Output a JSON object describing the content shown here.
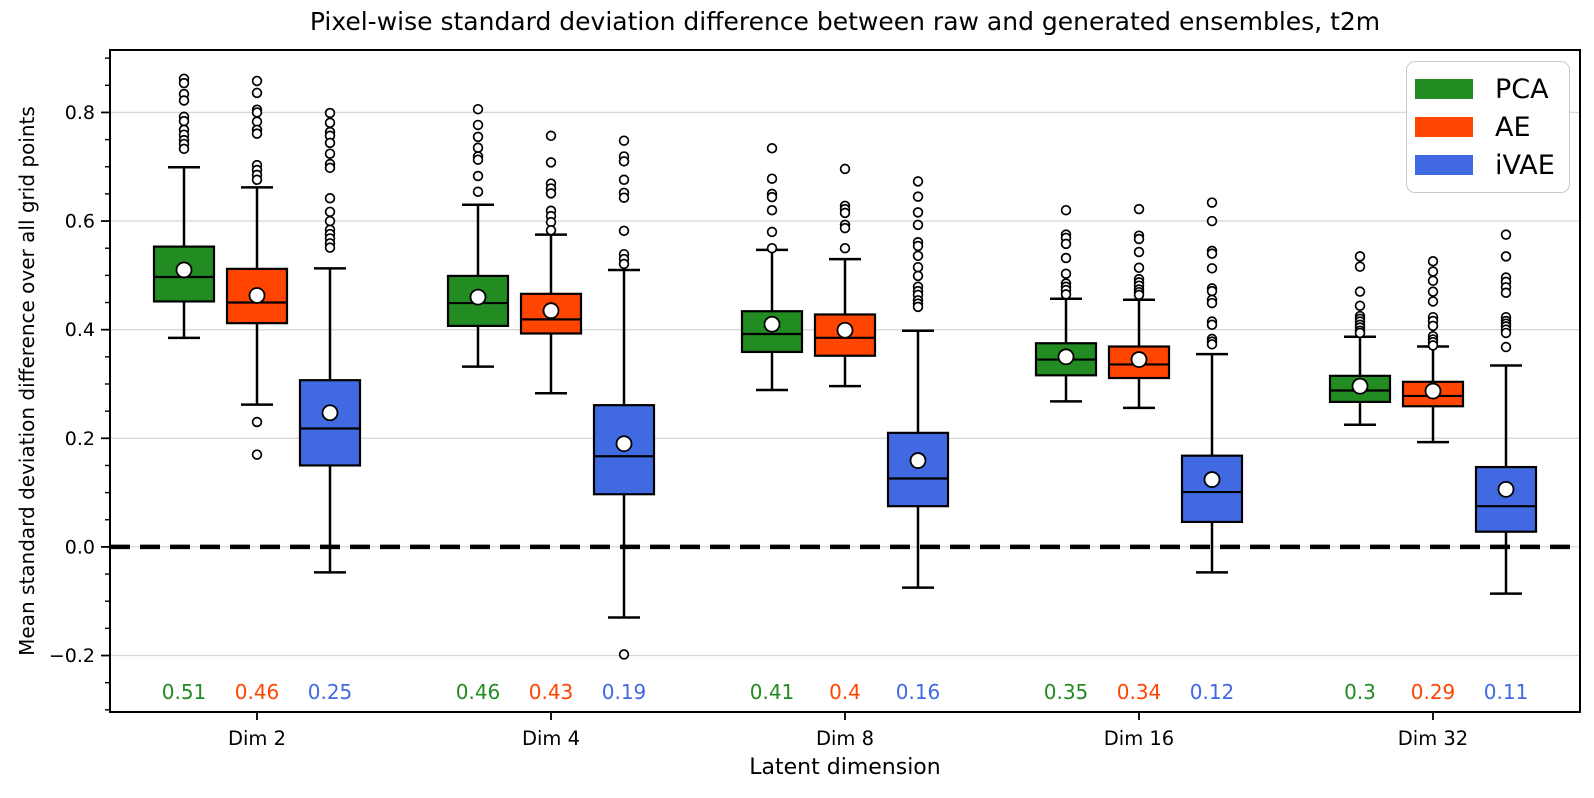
{
  "chart_data": {
    "type": "boxplot",
    "title": "Pixel-wise standard deviation difference between raw and generated ensembles, t2m",
    "xlabel": "Latent dimension",
    "ylabel": "Mean standard deviation difference over all grid points",
    "categories": [
      "Dim 2",
      "Dim 4",
      "Dim 8",
      "Dim 16",
      "Dim 32"
    ],
    "ylim": [
      -0.304,
      0.915
    ],
    "yticks_major": [
      0.8,
      0.6,
      0.4,
      0.2,
      0.0,
      -0.2
    ],
    "ytick_labels": [
      "0.8",
      "0.6",
      "0.4",
      "0.2",
      "0.0",
      "−0.2"
    ],
    "minor_tick_step": 0.05,
    "grid": "horizontal-major-light-gray",
    "zero_line": {
      "value": 0.0,
      "style": "dashed",
      "color": "#000000"
    },
    "colors": {
      "grid": "#d9d9d9",
      "spine": "#000000",
      "marker_fill": "#ffffff",
      "legend_border": "#c9c9c9"
    },
    "legend": {
      "position": "upper right",
      "entries": [
        {
          "label": "PCA",
          "color": "#228B22"
        },
        {
          "label": "AE",
          "color": "#FF4500"
        },
        {
          "label": "iVAE",
          "color": "#4169E1"
        }
      ]
    },
    "series": [
      {
        "name": "PCA",
        "color": "#228B22",
        "mean_labels": [
          "0.51",
          "0.46",
          "0.41",
          "0.35",
          "0.3"
        ],
        "boxes": [
          {
            "whislo": 0.385,
            "q1": 0.452,
            "med": 0.497,
            "q3": 0.553,
            "whishi": 0.699,
            "mean": 0.51,
            "fliers": [
              0.862,
              0.854,
              0.834,
              0.822,
              0.792,
              0.784,
              0.768,
              0.759,
              0.749,
              0.742,
              0.733
            ]
          },
          {
            "whislo": 0.332,
            "q1": 0.407,
            "med": 0.449,
            "q3": 0.499,
            "whishi": 0.63,
            "mean": 0.46,
            "fliers": [
              0.806,
              0.777,
              0.755,
              0.735,
              0.719,
              0.713,
              0.683,
              0.654
            ]
          },
          {
            "whislo": 0.289,
            "q1": 0.359,
            "med": 0.392,
            "q3": 0.434,
            "whishi": 0.547,
            "mean": 0.41,
            "fliers": [
              0.734,
              0.678,
              0.65,
              0.644,
              0.62,
              0.58,
              0.55
            ]
          },
          {
            "whislo": 0.268,
            "q1": 0.316,
            "med": 0.345,
            "q3": 0.375,
            "whishi": 0.457,
            "mean": 0.35,
            "fliers": [
              0.62,
              0.575,
              0.569,
              0.558,
              0.532,
              0.503,
              0.485,
              0.479,
              0.473,
              0.465
            ]
          },
          {
            "whislo": 0.225,
            "q1": 0.267,
            "med": 0.288,
            "q3": 0.315,
            "whishi": 0.387,
            "mean": 0.296,
            "fliers": [
              0.535,
              0.516,
              0.47,
              0.444,
              0.425,
              0.42,
              0.415,
              0.409,
              0.404,
              0.398,
              0.394
            ]
          }
        ]
      },
      {
        "name": "AE",
        "color": "#FF4500",
        "mean_labels": [
          "0.46",
          "0.43",
          "0.4",
          "0.34",
          "0.29"
        ],
        "boxes": [
          {
            "whislo": 0.262,
            "q1": 0.412,
            "med": 0.45,
            "q3": 0.512,
            "whishi": 0.662,
            "mean": 0.463,
            "fliers": [
              0.858,
              0.836,
              0.805,
              0.8,
              0.783,
              0.768,
              0.761,
              0.703,
              0.694,
              0.685,
              0.676,
              0.23,
              0.17
            ]
          },
          {
            "whislo": 0.283,
            "q1": 0.393,
            "med": 0.419,
            "q3": 0.466,
            "whishi": 0.575,
            "mean": 0.435,
            "fliers": [
              0.757,
              0.708,
              0.669,
              0.66,
              0.651,
              0.619,
              0.609,
              0.598,
              0.583
            ]
          },
          {
            "whislo": 0.296,
            "q1": 0.352,
            "med": 0.385,
            "q3": 0.428,
            "whishi": 0.53,
            "mean": 0.399,
            "fliers": [
              0.696,
              0.628,
              0.622,
              0.615,
              0.593,
              0.587,
              0.55
            ]
          },
          {
            "whislo": 0.256,
            "q1": 0.311,
            "med": 0.336,
            "q3": 0.369,
            "whishi": 0.455,
            "mean": 0.345,
            "fliers": [
              0.622,
              0.573,
              0.567,
              0.543,
              0.514,
              0.493,
              0.487,
              0.481,
              0.474,
              0.469,
              0.464
            ]
          },
          {
            "whislo": 0.193,
            "q1": 0.259,
            "med": 0.278,
            "q3": 0.304,
            "whishi": 0.369,
            "mean": 0.287,
            "fliers": [
              0.526,
              0.507,
              0.49,
              0.47,
              0.452,
              0.423,
              0.416,
              0.407,
              0.388,
              0.382,
              0.377,
              0.371
            ]
          }
        ]
      },
      {
        "name": "iVAE",
        "color": "#4169E1",
        "mean_labels": [
          "0.25",
          "0.19",
          "0.16",
          "0.12",
          "0.11"
        ],
        "boxes": [
          {
            "whislo": -0.047,
            "q1": 0.15,
            "med": 0.218,
            "q3": 0.307,
            "whishi": 0.513,
            "mean": 0.247,
            "fliers": [
              0.799,
              0.781,
              0.764,
              0.757,
              0.744,
              0.724,
              0.705,
              0.698,
              0.642,
              0.617,
              0.6,
              0.584,
              0.576,
              0.568,
              0.559,
              0.551
            ]
          },
          {
            "whislo": -0.13,
            "q1": 0.097,
            "med": 0.167,
            "q3": 0.261,
            "whishi": 0.51,
            "mean": 0.19,
            "fliers": [
              0.748,
              0.719,
              0.71,
              0.676,
              0.652,
              0.643,
              0.582,
              0.539,
              0.53,
              0.521,
              -0.198
            ]
          },
          {
            "whislo": -0.075,
            "q1": 0.075,
            "med": 0.126,
            "q3": 0.21,
            "whishi": 0.398,
            "mean": 0.159,
            "fliers": [
              0.673,
              0.645,
              0.616,
              0.593,
              0.561,
              0.554,
              0.536,
              0.515,
              0.499,
              0.479,
              0.471,
              0.464,
              0.454,
              0.448,
              0.442
            ]
          },
          {
            "whislo": -0.047,
            "q1": 0.046,
            "med": 0.101,
            "q3": 0.168,
            "whishi": 0.355,
            "mean": 0.124,
            "fliers": [
              0.634,
              0.6,
              0.545,
              0.54,
              0.513,
              0.476,
              0.471,
              0.455,
              0.449,
              0.415,
              0.409,
              0.383,
              0.378,
              0.373
            ]
          },
          {
            "whislo": -0.086,
            "q1": 0.028,
            "med": 0.075,
            "q3": 0.147,
            "whishi": 0.334,
            "mean": 0.106,
            "fliers": [
              0.575,
              0.535,
              0.496,
              0.488,
              0.478,
              0.468,
              0.423,
              0.416,
              0.411,
              0.406,
              0.4,
              0.394,
              0.368
            ]
          }
        ]
      }
    ]
  }
}
